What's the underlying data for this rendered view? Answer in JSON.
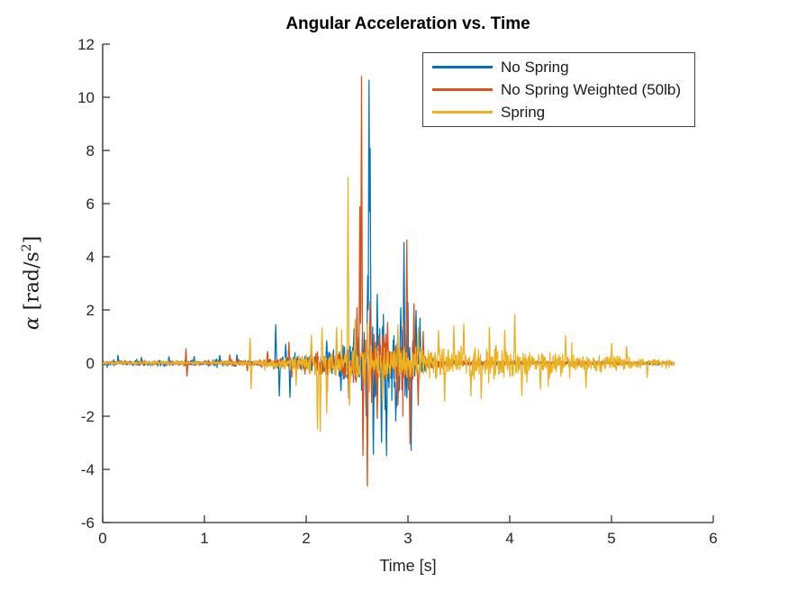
{
  "figure": {
    "background": "#ffffff"
  },
  "chart_data": {
    "type": "line",
    "title": "Angular Acceleration vs. Time",
    "xlabel": "Time [s]",
    "ylabel": {
      "symbol": "α",
      "unit_open": " [rad/s",
      "sup": "2",
      "unit_close": "]"
    },
    "xlim": [
      0,
      6
    ],
    "ylim": [
      -6,
      12
    ],
    "xticks": [
      "0",
      "1",
      "2",
      "3",
      "4",
      "5",
      "6"
    ],
    "yticks": [
      "-6",
      "-4",
      "-2",
      "0",
      "2",
      "4",
      "6",
      "8",
      "10",
      "12"
    ],
    "grid": false,
    "box": false,
    "axis_color": "#262626",
    "legend": {
      "position": "top-right-inside",
      "border_color": "#404040",
      "background": "#ffffff"
    },
    "series": [
      {
        "name": "No Spring",
        "color": "#0072BD",
        "seed": 101,
        "t_start": 0,
        "t_end": 5.6,
        "dt": 0.0035,
        "envelope": [
          [
            0,
            0.05
          ],
          [
            0.1,
            0.16
          ],
          [
            0.2,
            0.06
          ],
          [
            0.33,
            0.14
          ],
          [
            0.45,
            0.06
          ],
          [
            0.62,
            0.15
          ],
          [
            0.72,
            0.06
          ],
          [
            0.88,
            0.16
          ],
          [
            0.98,
            0.07
          ],
          [
            1.12,
            0.17
          ],
          [
            1.22,
            0.07
          ],
          [
            1.3,
            0.18
          ],
          [
            1.4,
            0.08
          ],
          [
            1.55,
            0.12
          ],
          [
            1.7,
            0.22
          ],
          [
            1.9,
            0.28
          ],
          [
            2.1,
            0.33
          ],
          [
            2.3,
            0.5
          ],
          [
            2.45,
            0.75
          ],
          [
            2.55,
            1.05
          ],
          [
            2.62,
            1.45
          ],
          [
            2.75,
            1.25
          ],
          [
            2.95,
            1.4
          ],
          [
            3.05,
            0.9
          ],
          [
            3.15,
            0.4
          ],
          [
            3.3,
            0.12
          ],
          [
            3.6,
            0.06
          ],
          [
            4.2,
            0.05
          ],
          [
            5.6,
            0.04
          ]
        ],
        "spikes": [
          [
            0.15,
            0.3
          ],
          [
            0.38,
            0.22
          ],
          [
            0.65,
            0.25
          ],
          [
            0.9,
            0.26
          ],
          [
            1.15,
            0.3
          ],
          [
            1.32,
            0.32
          ],
          [
            1.7,
            1.45
          ],
          [
            1.735,
            -1.25
          ],
          [
            1.8,
            0.72
          ],
          [
            1.84,
            -1.3
          ],
          [
            2.2,
            0.85
          ],
          [
            2.34,
            -1.05
          ],
          [
            2.47,
            1.3
          ],
          [
            2.59,
            -2.0
          ],
          [
            2.605,
            3.3
          ],
          [
            2.617,
            10.65
          ],
          [
            2.628,
            8.1
          ],
          [
            2.66,
            -3.45
          ],
          [
            2.7,
            2.6
          ],
          [
            2.74,
            -3.0
          ],
          [
            2.79,
            -3.5
          ],
          [
            2.88,
            -2.2
          ],
          [
            2.93,
            2.1
          ],
          [
            2.96,
            4.55
          ],
          [
            3.0,
            2.3
          ],
          [
            3.03,
            -3.3
          ],
          [
            3.08,
            2.0
          ],
          [
            3.12,
            1.7
          ]
        ]
      },
      {
        "name": "No Spring Weighted (50lb)",
        "color": "#D95319",
        "seed": 202,
        "t_start": 0,
        "t_end": 5.6,
        "dt": 0.0035,
        "envelope": [
          [
            0,
            0.04
          ],
          [
            0.78,
            0.05
          ],
          [
            0.82,
            0.2
          ],
          [
            0.86,
            0.05
          ],
          [
            1.15,
            0.08
          ],
          [
            1.3,
            0.12
          ],
          [
            1.45,
            0.1
          ],
          [
            1.6,
            0.14
          ],
          [
            1.8,
            0.18
          ],
          [
            2.0,
            0.28
          ],
          [
            2.2,
            0.45
          ],
          [
            2.4,
            0.7
          ],
          [
            2.55,
            1.0
          ],
          [
            2.65,
            1.1
          ],
          [
            2.8,
            0.85
          ],
          [
            2.95,
            0.95
          ],
          [
            3.05,
            0.6
          ],
          [
            3.15,
            0.3
          ],
          [
            3.35,
            0.15
          ],
          [
            3.6,
            0.1
          ],
          [
            4.0,
            0.06
          ],
          [
            5.6,
            0.03
          ]
        ],
        "spikes": [
          [
            0.82,
            0.55
          ],
          [
            0.828,
            -0.5
          ],
          [
            1.25,
            0.32
          ],
          [
            1.42,
            -0.3
          ],
          [
            1.62,
            0.45
          ],
          [
            1.83,
            0.8
          ],
          [
            1.86,
            -0.55
          ],
          [
            2.05,
            0.7
          ],
          [
            2.3,
            1.05
          ],
          [
            2.42,
            -1.35
          ],
          [
            2.5,
            2.1
          ],
          [
            2.528,
            5.9
          ],
          [
            2.545,
            10.8
          ],
          [
            2.558,
            -3.5
          ],
          [
            2.6,
            -4.65
          ],
          [
            2.63,
            2.35
          ],
          [
            2.7,
            -2.1
          ],
          [
            2.8,
            1.55
          ],
          [
            2.9,
            -1.6
          ],
          [
            2.99,
            4.65
          ],
          [
            3.02,
            -3.05
          ],
          [
            3.06,
            2.25
          ],
          [
            3.1,
            -1.6
          ],
          [
            3.15,
            1.2
          ]
        ]
      },
      {
        "name": "Spring",
        "color": "#EDB120",
        "seed": 303,
        "t_start": 0,
        "t_end": 5.62,
        "dt": 0.0035,
        "envelope": [
          [
            0,
            0.05
          ],
          [
            1.35,
            0.06
          ],
          [
            1.5,
            0.12
          ],
          [
            1.7,
            0.2
          ],
          [
            1.9,
            0.3
          ],
          [
            2.05,
            0.42
          ],
          [
            2.25,
            0.55
          ],
          [
            2.45,
            0.68
          ],
          [
            2.7,
            0.62
          ],
          [
            3.0,
            0.6
          ],
          [
            3.3,
            0.52
          ],
          [
            3.6,
            0.55
          ],
          [
            3.9,
            0.58
          ],
          [
            4.05,
            0.55
          ],
          [
            4.25,
            0.4
          ],
          [
            4.5,
            0.42
          ],
          [
            4.65,
            0.3
          ],
          [
            4.85,
            0.33
          ],
          [
            5.05,
            0.28
          ],
          [
            5.25,
            0.18
          ],
          [
            5.45,
            0.16
          ],
          [
            5.62,
            0.08
          ]
        ],
        "spikes": [
          [
            1.45,
            0.95
          ],
          [
            1.458,
            -0.98
          ],
          [
            1.9,
            -0.85
          ],
          [
            2.05,
            1.05
          ],
          [
            2.11,
            -2.5
          ],
          [
            2.14,
            -2.6
          ],
          [
            2.155,
            1.35
          ],
          [
            2.2,
            -1.9
          ],
          [
            2.3,
            1.35
          ],
          [
            2.41,
            7.0
          ],
          [
            2.425,
            -1.6
          ],
          [
            2.48,
            1.65
          ],
          [
            2.6,
            1.5
          ],
          [
            2.75,
            -1.55
          ],
          [
            2.9,
            1.45
          ],
          [
            3.1,
            1.35
          ],
          [
            3.3,
            1.25
          ],
          [
            3.36,
            -1.45
          ],
          [
            3.45,
            1.4
          ],
          [
            3.55,
            1.5
          ],
          [
            3.62,
            -1.25
          ],
          [
            3.72,
            -1.35
          ],
          [
            3.8,
            1.35
          ],
          [
            3.95,
            1.25
          ],
          [
            4.05,
            1.85
          ],
          [
            4.12,
            -1.25
          ],
          [
            4.3,
            -1.0
          ],
          [
            4.55,
            1.05
          ],
          [
            4.75,
            -0.95
          ],
          [
            5.0,
            0.75
          ],
          [
            5.15,
            0.65
          ],
          [
            5.35,
            -0.55
          ]
        ]
      }
    ]
  }
}
